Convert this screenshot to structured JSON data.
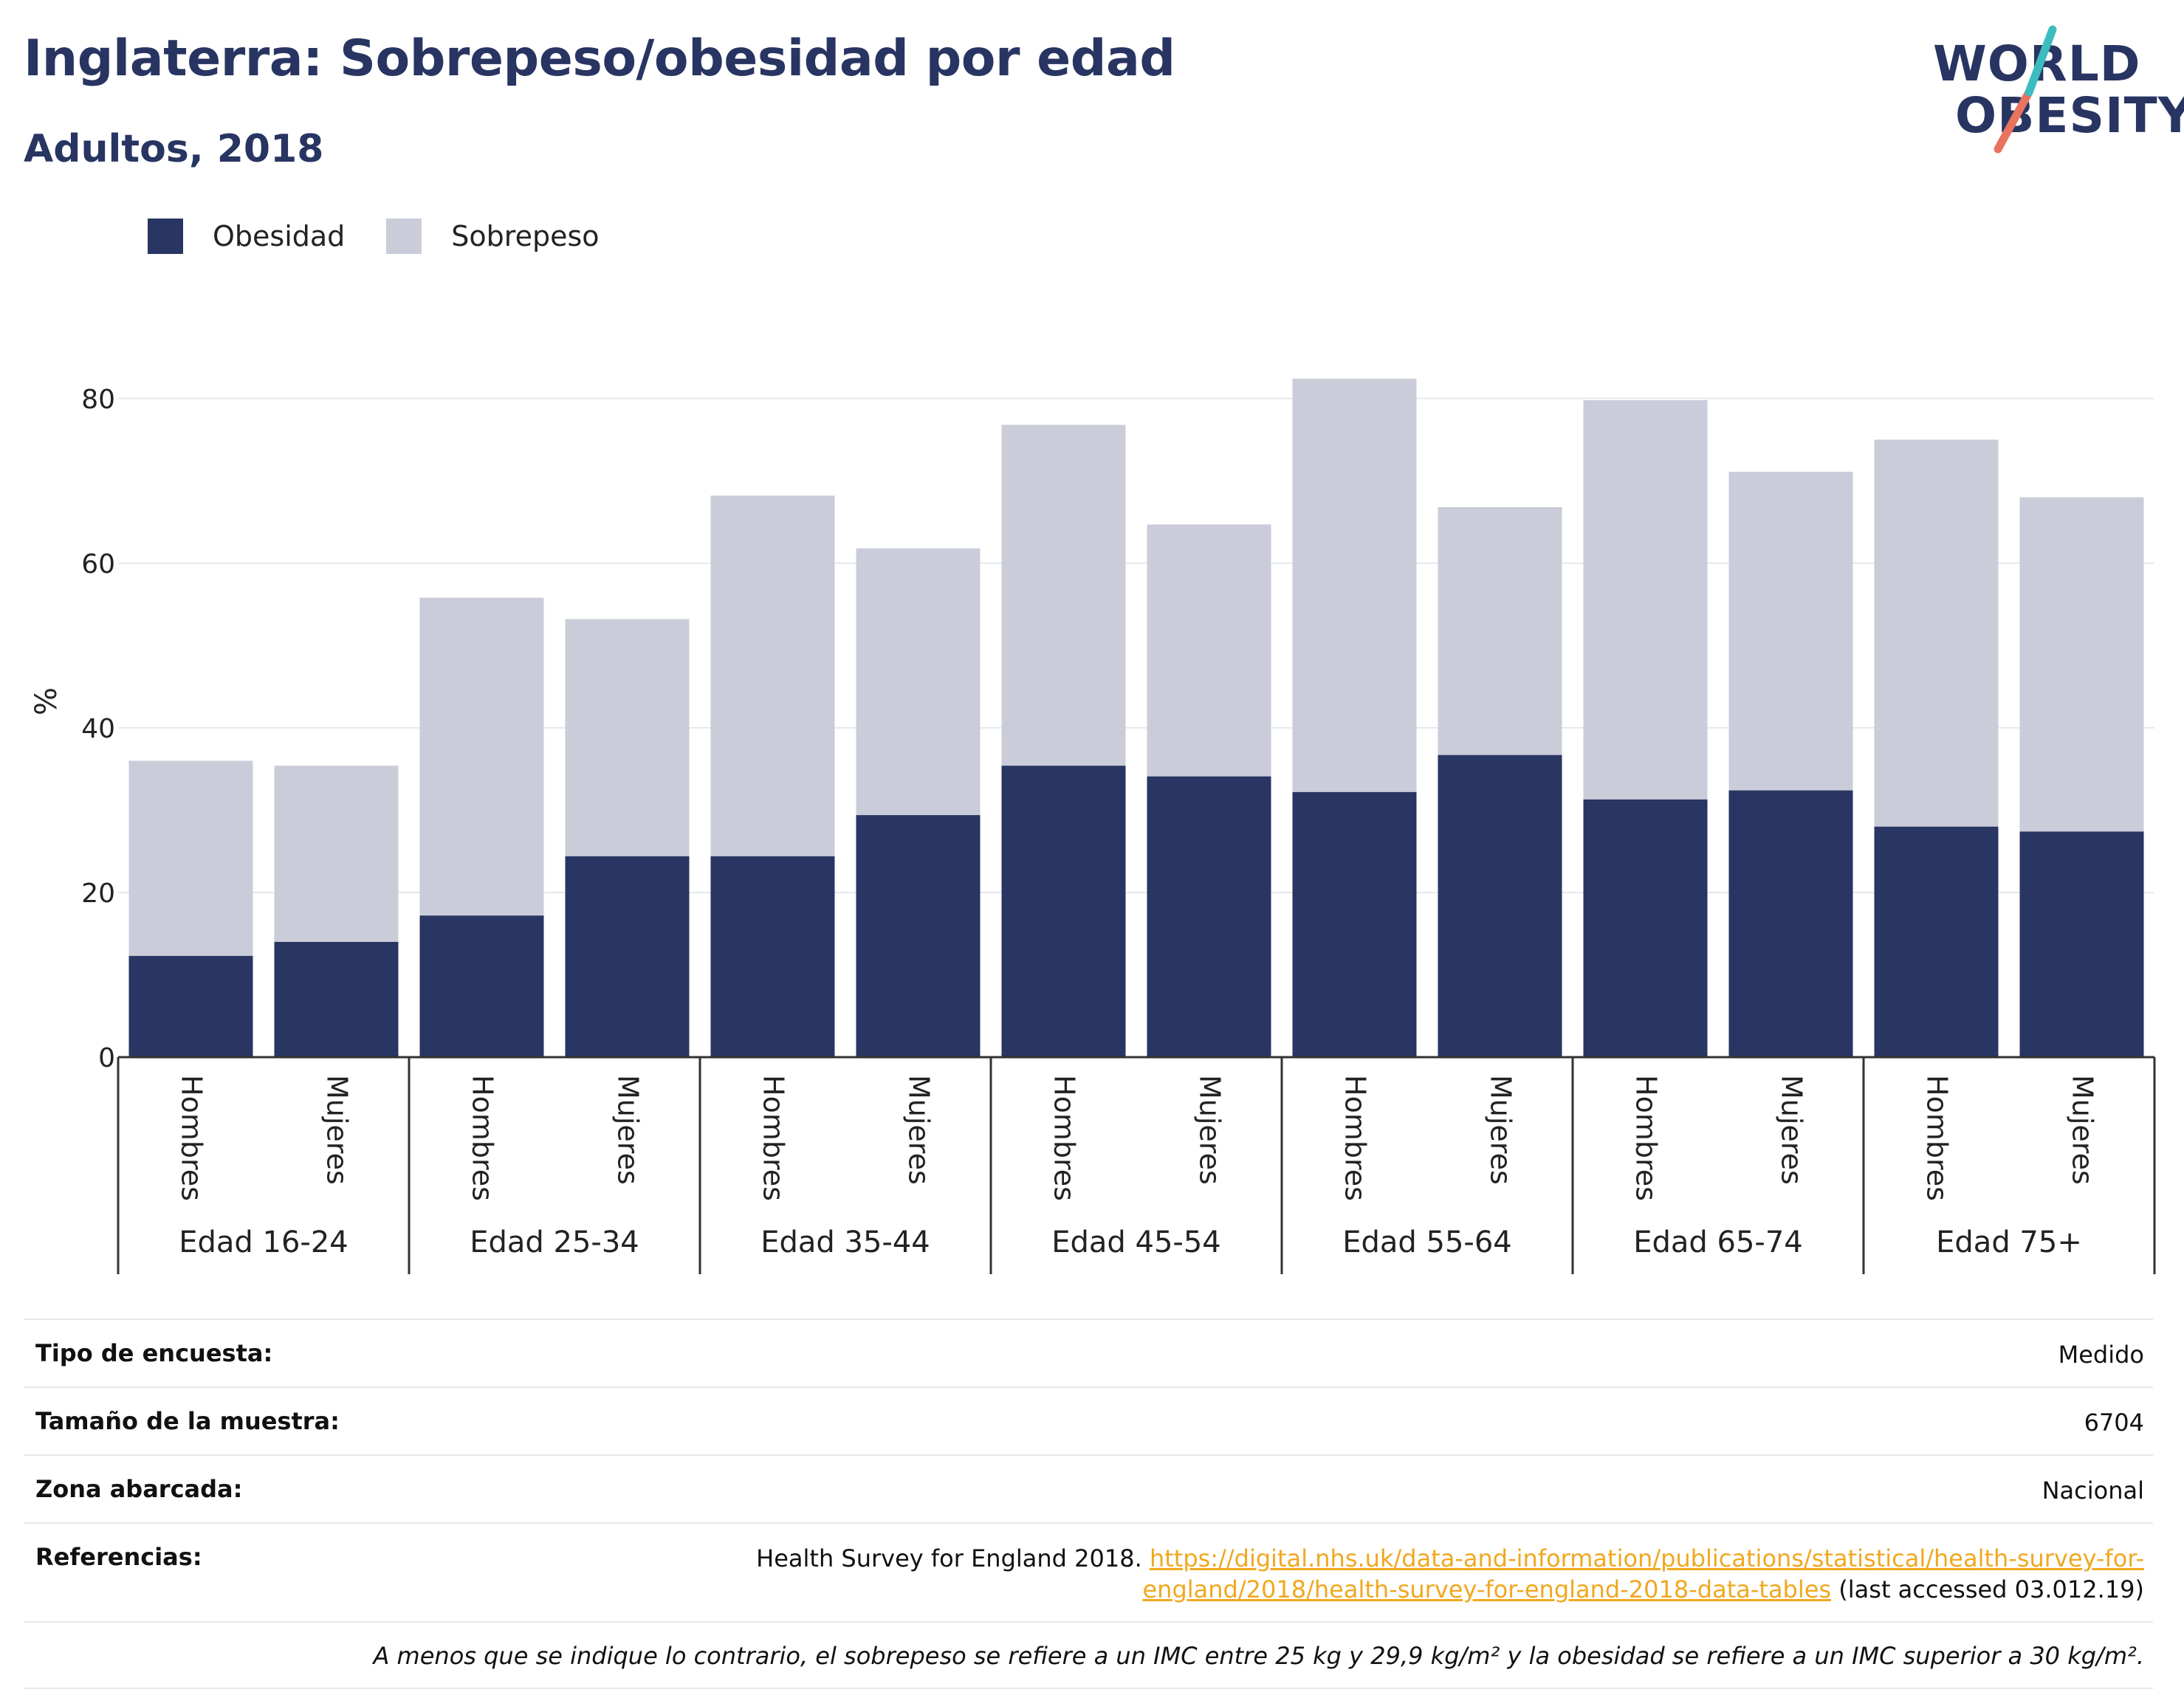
{
  "header": {
    "title": "Inglaterra: Sobrepeso/obesidad por edad",
    "subtitle": "Adultos, 2018"
  },
  "logo": {
    "line1": "WORLD",
    "line2": "OBESITY",
    "icon": "world-obesity-slash-logo"
  },
  "colors": {
    "obesidad": "#293562",
    "sobrepeso": "#cacdd9",
    "text": "#283562",
    "link": "#f0a820"
  },
  "legend": [
    {
      "label": "Obesidad",
      "color": "#293562"
    },
    {
      "label": "Sobrepeso",
      "color": "#cacdd9"
    }
  ],
  "chart_data": {
    "type": "bar",
    "stacked": true,
    "ylabel": "%",
    "ylim": [
      0,
      85
    ],
    "yticks": [
      0,
      20,
      40,
      60,
      80
    ],
    "grid": true,
    "legend_position": "top-left",
    "groups": [
      "Edad 16-24",
      "Edad 25-34",
      "Edad 35-44",
      "Edad 45-54",
      "Edad 55-64",
      "Edad 65-74",
      "Edad 75+"
    ],
    "subcategories": [
      "Hombres",
      "Mujeres"
    ],
    "series": [
      {
        "name": "Obesidad",
        "values": [
          12.3,
          14.0,
          17.2,
          24.4,
          24.4,
          29.4,
          35.4,
          34.1,
          32.2,
          36.7,
          31.3,
          32.4,
          28.0,
          27.4
        ]
      },
      {
        "name": "Sobrepeso",
        "values": [
          23.7,
          21.4,
          38.6,
          28.8,
          43.8,
          32.4,
          41.4,
          30.6,
          50.2,
          30.1,
          48.5,
          38.7,
          47.0,
          40.6
        ]
      }
    ]
  },
  "meta": {
    "rows": [
      {
        "key": "Tipo de encuesta:",
        "value": "Medido"
      },
      {
        "key": "Tamaño de la muestra:",
        "value": "6704"
      },
      {
        "key": "Zona abarcada:",
        "value": "Nacional"
      }
    ],
    "references": {
      "key": "Referencias:",
      "prefix": "Health Survey for England 2018. ",
      "link": "https://digital.nhs.uk/data-and-information/publications/statistical/health-survey-for-england/2018/health-survey-for-england-2018-data-tables",
      "suffix": " (last accessed 03.012.19)"
    },
    "note": "A menos que se indique lo contrario, el sobrepeso se refiere a un IMC entre 25 kg y 29,9 kg/m² y la obesidad se refiere a un IMC superior a 30 kg/m²."
  }
}
